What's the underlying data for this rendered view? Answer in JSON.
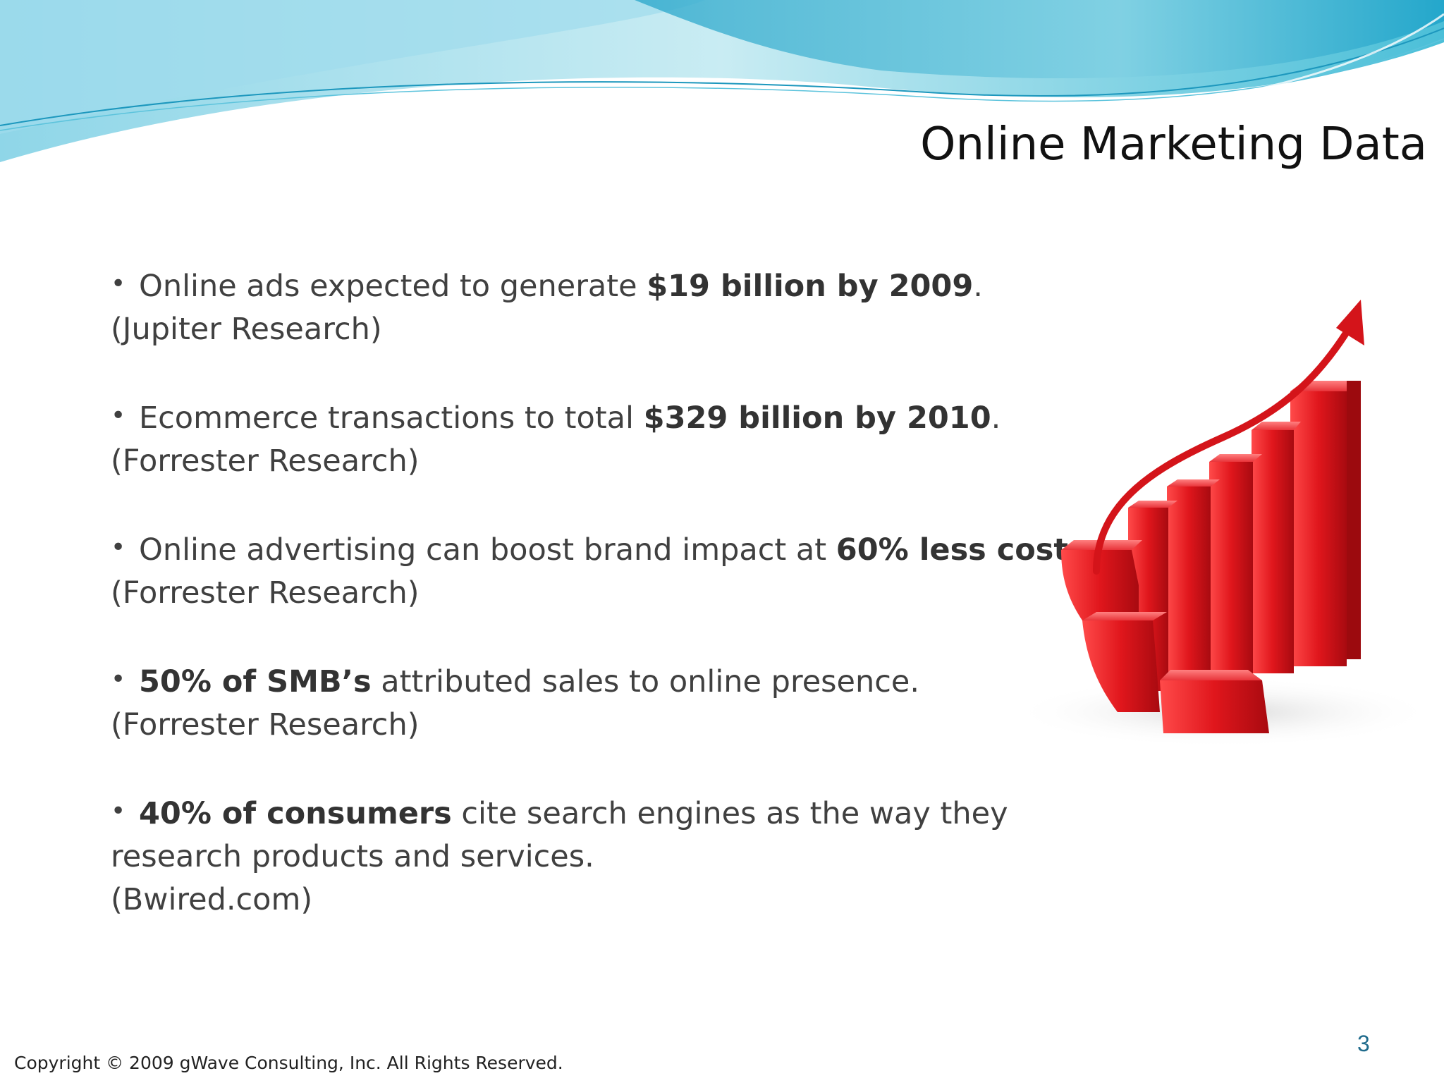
{
  "slide": {
    "title": "Online Marketing Data",
    "bullets": [
      {
        "pre": "Online ads expected to generate ",
        "bold": "$19 billion by 2009",
        "post": ".",
        "source": "(Jupiter Research)"
      },
      {
        "pre": "Ecommerce transactions to total ",
        "bold": "$329 billion by 2010",
        "post": ".",
        "source": "(Forrester Research)"
      },
      {
        "pre": "Online advertising can boost brand impact at ",
        "bold": "60% less cost",
        "post": ".",
        "source": "(Forrester Research)"
      },
      {
        "bold": "50% of SMB’s",
        "post": " attributed sales to online presence.",
        "source": "(Forrester Research)"
      },
      {
        "bold": "40% of consumers",
        "post": " cite search engines as the way they",
        "continuation": "research products and services.",
        "source": "(Bwired.com)"
      }
    ],
    "bullet_symbol": "•",
    "page_number": "3",
    "copyright": "Copyright © 2009 gWave Consulting, Inc. All Rights Reserved.",
    "graphic": "red-bar-growth-arrow-icon",
    "colors": {
      "wave_light": "#bfe6f0",
      "wave_mid": "#7fd0e3",
      "wave_dark": "#39b4d2",
      "bar_red": "#e21c22",
      "text": "#404040",
      "page_number": "#1f6b8c"
    }
  }
}
